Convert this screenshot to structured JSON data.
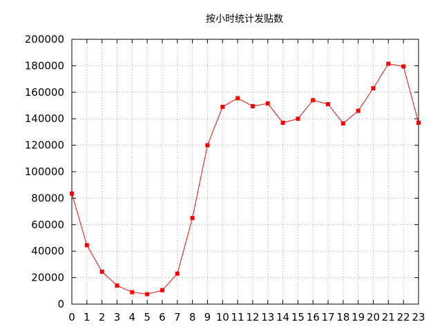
{
  "chart_data": {
    "type": "line",
    "title": "按小时统计发贴数",
    "xlabel": "",
    "ylabel": "",
    "x": [
      0,
      1,
      2,
      3,
      4,
      5,
      6,
      7,
      8,
      9,
      10,
      11,
      12,
      13,
      14,
      15,
      16,
      17,
      18,
      19,
      20,
      21,
      22,
      23
    ],
    "series": [
      {
        "name": "",
        "color": "#ff0000",
        "values": [
          83500,
          44500,
          24500,
          14000,
          9000,
          7500,
          10500,
          23000,
          65000,
          120000,
          149000,
          155500,
          149500,
          151500,
          137000,
          140000,
          154000,
          151000,
          136500,
          146000,
          163000,
          181500,
          179500,
          137000
        ]
      }
    ],
    "xlim": [
      0,
      23
    ],
    "ylim": [
      0,
      200000
    ],
    "yticks": [
      "0",
      "20000",
      "40000",
      "60000",
      "80000",
      "100000",
      "120000",
      "140000",
      "160000",
      "180000",
      "200000"
    ],
    "xticks": [
      "0",
      "1",
      "2",
      "3",
      "4",
      "5",
      "6",
      "7",
      "8",
      "9",
      "10",
      "11",
      "12",
      "13",
      "14",
      "15",
      "16",
      "17",
      "18",
      "19",
      "20",
      "21",
      "22",
      "23"
    ],
    "grid": true,
    "legend": "none"
  }
}
